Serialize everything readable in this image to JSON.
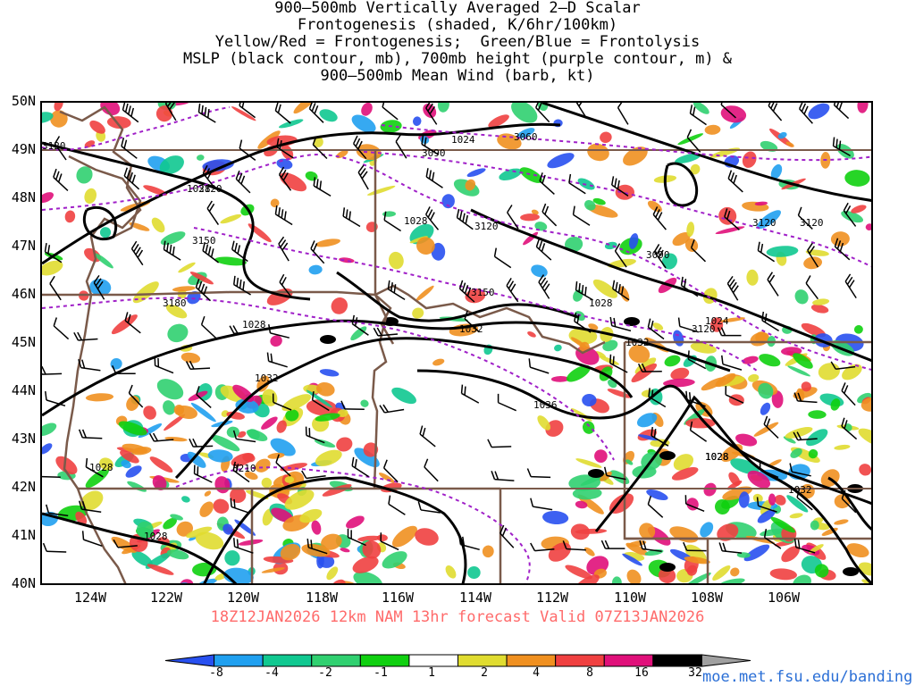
{
  "title": {
    "lines": [
      "900–500mb Vertically Averaged 2–D Scalar",
      "Frontogenesis (shaded, K/6hr/100km)",
      "Yellow/Red = Frontogenesis;  Green/Blue = Frontolysis",
      "MSLP (black contour, mb), 700mb height (purple contour, m) &",
      "900–500mb Mean Wind (barb, kt)"
    ]
  },
  "map": {
    "lat_labels": [
      "50N",
      "49N",
      "48N",
      "47N",
      "46N",
      "45N",
      "44N",
      "43N",
      "42N",
      "41N",
      "40N"
    ],
    "lon_labels": [
      "124W",
      "122W",
      "120W",
      "118W",
      "116W",
      "114W",
      "112W",
      "110W",
      "108W",
      "106W"
    ],
    "mslp_labels": [
      "1024",
      "1028",
      "1028",
      "1028",
      "1028",
      "1028",
      "1032",
      "1032",
      "1032",
      "1036",
      "1028",
      "1028",
      "1028",
      "1024",
      "1032",
      "1028"
    ],
    "height_labels": [
      "3060",
      "3090",
      "3120",
      "3120",
      "3150",
      "3180",
      "3120",
      "3150",
      "3090",
      "3120",
      "3210",
      "3120",
      "3120"
    ],
    "colors": {
      "mslp_contour": "#000000",
      "height_contour": "#a020c8",
      "border": "#7a5a4a",
      "barb": "#000000"
    }
  },
  "valid_line": "18Z12JAN2026 12km NAM 13hr forecast Valid 07Z13JAN2026",
  "colorbar": {
    "labels": [
      "-8",
      "-4",
      "-2",
      "-1",
      "1",
      "2",
      "4",
      "8",
      "16",
      "32"
    ],
    "colors": [
      "#2850f0",
      "#20a0f0",
      "#10c890",
      "#30d070",
      "#10d010",
      "#ffffff",
      "#e0dc30",
      "#f09020",
      "#f04040",
      "#e0107a",
      "#000000",
      "#a0a0a0"
    ]
  },
  "website": "moe.met.fsu.edu/banding"
}
